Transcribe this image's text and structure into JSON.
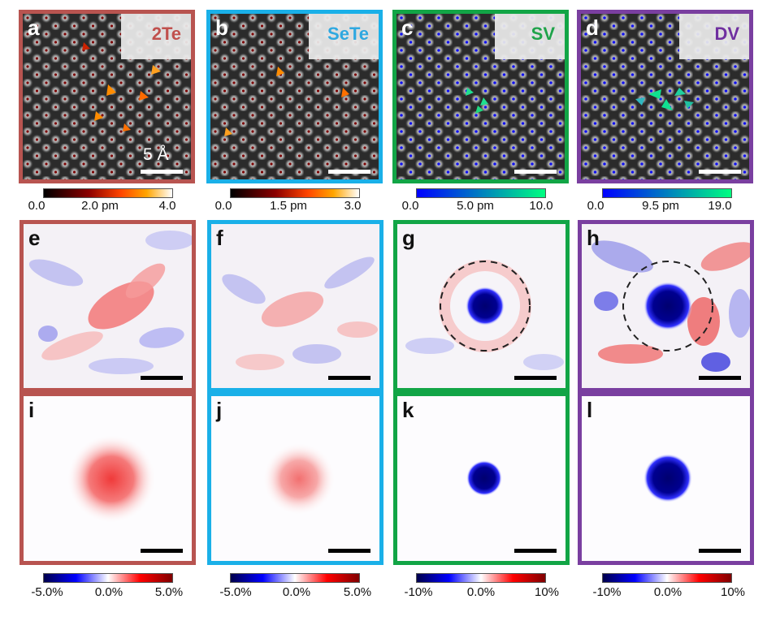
{
  "row1": {
    "panels": [
      {
        "letter": "a",
        "tag": "2Te",
        "tag_color": "#c0504d",
        "border": "#b85450"
      },
      {
        "letter": "b",
        "tag": "SeTe",
        "tag_color": "#2fa8e0",
        "border": "#1ab0e8"
      },
      {
        "letter": "c",
        "tag": "SV",
        "tag_color": "#1fa34a",
        "border": "#12a546"
      },
      {
        "letter": "d",
        "tag": "DV",
        "tag_color": "#7030a0",
        "border": "#7a3fa0"
      }
    ],
    "scale_label": "5 Å"
  },
  "colorbars_top": [
    {
      "ticks": [
        "0.0",
        "2.0 pm",
        "4.0"
      ],
      "colormap": "hot"
    },
    {
      "ticks": [
        "0.0",
        "1.5 pm",
        "3.0"
      ],
      "colormap": "hot"
    },
    {
      "ticks": [
        "0.0",
        "5.0 pm",
        "10.0"
      ],
      "colormap": "winter"
    },
    {
      "ticks": [
        "0.0",
        "9.5 pm",
        "19.0"
      ],
      "colormap": "winter"
    }
  ],
  "row2": {
    "letters": [
      "e",
      "f",
      "g",
      "h"
    ]
  },
  "row3": {
    "letters": [
      "i",
      "j",
      "k",
      "l"
    ]
  },
  "colorbars_bottom": [
    {
      "ticks": [
        "-5.0%",
        "0.0%",
        "5.0%"
      ],
      "colormap": "seismic"
    },
    {
      "ticks": [
        "-5.0%",
        "0.0%",
        "5.0%"
      ],
      "colormap": "seismic"
    },
    {
      "ticks": [
        "-10%",
        "0.0%",
        "10%"
      ],
      "colormap": "seismic"
    },
    {
      "ticks": [
        "-10%",
        "0.0%",
        "10%"
      ],
      "colormap": "seismic"
    }
  ],
  "colors": {
    "hot": [
      "#000000",
      "#8b0000",
      "#ff4500",
      "#ffa500",
      "#ffffff"
    ],
    "winter": [
      "#0000ff",
      "#00ff80"
    ],
    "seismic": [
      "#00004c",
      "#0000ff",
      "#ffffff",
      "#ff0000",
      "#800000"
    ]
  }
}
